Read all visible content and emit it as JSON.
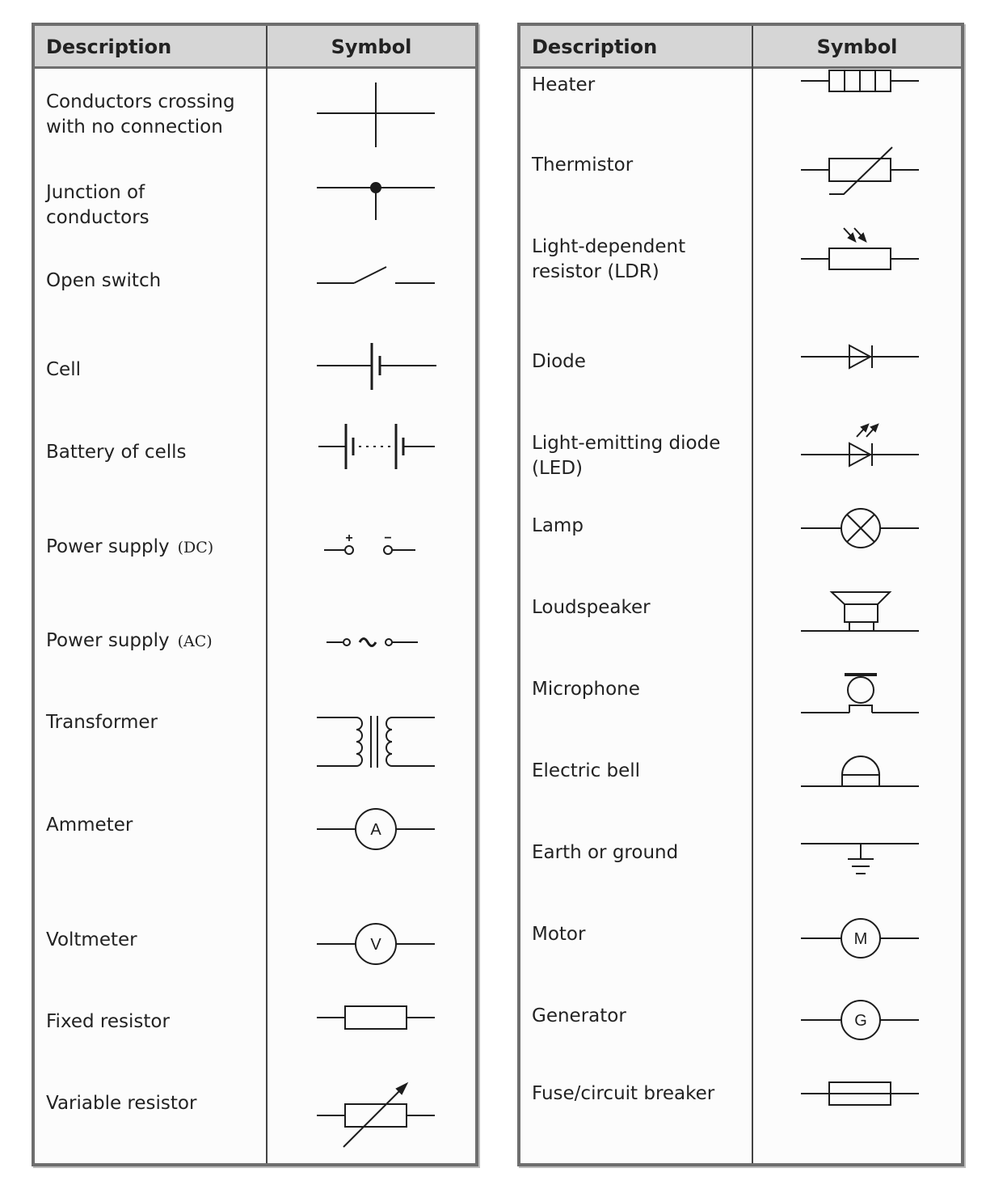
{
  "headers": {
    "description": "Description",
    "symbol": "Symbol"
  },
  "left_items": [
    "Conductors crossing\nwith no connection",
    "Junction of\nconductors",
    "Open switch",
    "Cell",
    "Battery of cells",
    "Power supply",
    "Power supply",
    "Transformer",
    "Ammeter",
    "Voltmeter",
    "Fixed resistor",
    "Variable resistor"
  ],
  "left_notes": {
    "dc": "(DC)",
    "ac": "(AC)"
  },
  "right_items": [
    "Heater",
    "Thermistor",
    "Light-dependent\nresistor (LDR)",
    "Diode",
    "Light-emitting diode\n(LED)",
    "Lamp",
    "Loudspeaker",
    "Microphone",
    "Electric bell",
    "Earth or ground",
    "Motor",
    "Generator",
    "Fuse/circuit breaker"
  ],
  "meter_letters": {
    "ammeter": "A",
    "voltmeter": "V",
    "motor": "M",
    "generator": "G"
  },
  "dc_signs": {
    "plus": "+",
    "minus": "−"
  }
}
